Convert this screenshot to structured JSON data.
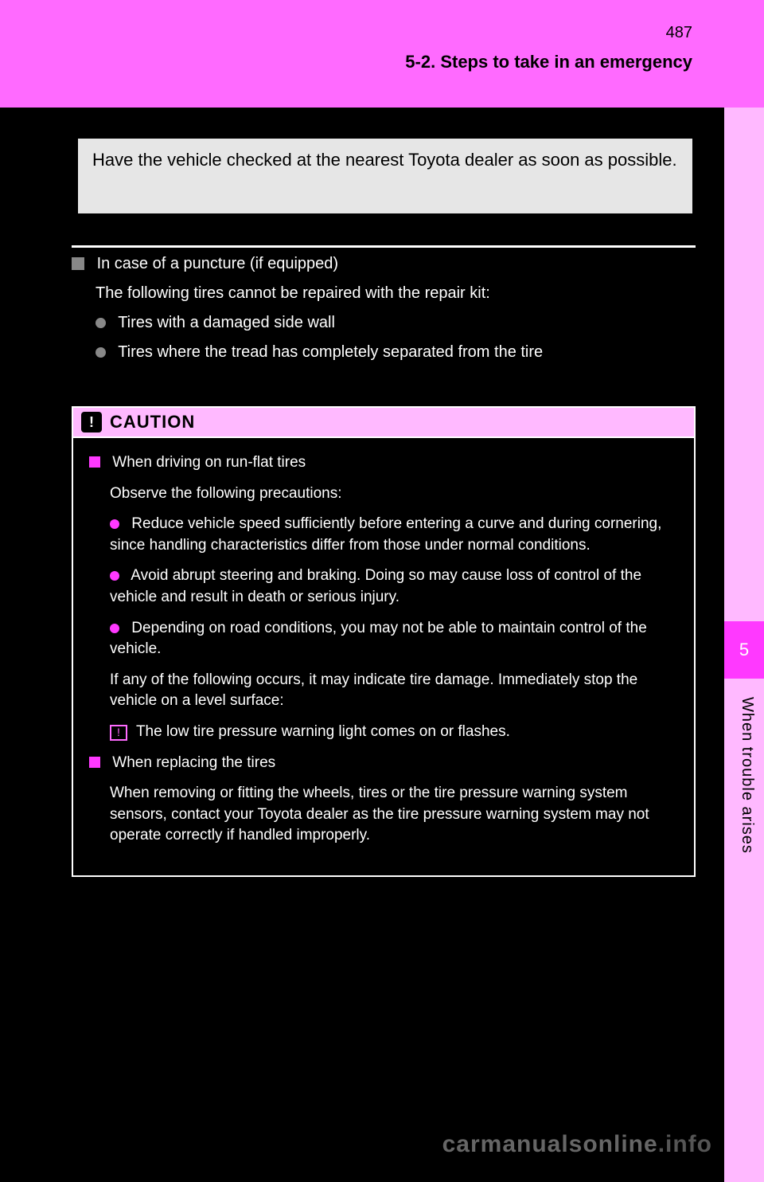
{
  "header": {
    "page_number": "487",
    "section_title": "5-2. Steps to take in an emergency"
  },
  "side": {
    "chapter_number": "5",
    "chapter_label": "When trouble arises"
  },
  "callout": {
    "text": "Have the vehicle checked at the nearest Toyota dealer as soon as possible."
  },
  "body": {
    "heading": "In case of a puncture (if equipped)",
    "intro": "The following tires cannot be repaired with the repair kit:",
    "bullets": [
      "Tires with a damaged side wall",
      "Tires where the tread has completely separated from the tire"
    ]
  },
  "caution": {
    "label": "CAUTION",
    "section1_title": "When driving on run-flat tires",
    "section1_intro": "Observe the following precautions:",
    "s1_bullets": [
      "Reduce vehicle speed sufficiently before entering a curve and during cornering, since handling characteristics differ from those under normal conditions.",
      "Avoid abrupt steering and braking. Doing so may cause loss of control of the vehicle and result in death or serious injury.",
      "Depending on road conditions, you may not be able to maintain control of the vehicle."
    ],
    "s1_note_lead": "If any of the following occurs, it may indicate tire damage. Immediately stop the vehicle on a level surface:",
    "s1_icon_note": "The low tire pressure warning light comes on or flashes.",
    "section2_title": "When replacing the tires",
    "section2_body": "When removing or fitting the wheels, tires or the tire pressure warning system sensors, contact your Toyota dealer as the tire pressure warning system may not operate correctly if handled improperly."
  },
  "watermark": {
    "a": "carmanualsonline",
    "b": ".info"
  },
  "colors": {
    "accent_light": "#ffb9ff",
    "accent_mid": "#ff6aff",
    "accent_strong": "#ff39ff",
    "bg": "#000000",
    "callout_bg": "#e6e6e6",
    "text_light": "#ffffff",
    "muted_sq": "#888888"
  },
  "typography": {
    "body_fontsize": 20,
    "header_fontsize": 22,
    "caution_fontsize": 19,
    "font_family": "Arial, Helvetica, sans-serif"
  }
}
